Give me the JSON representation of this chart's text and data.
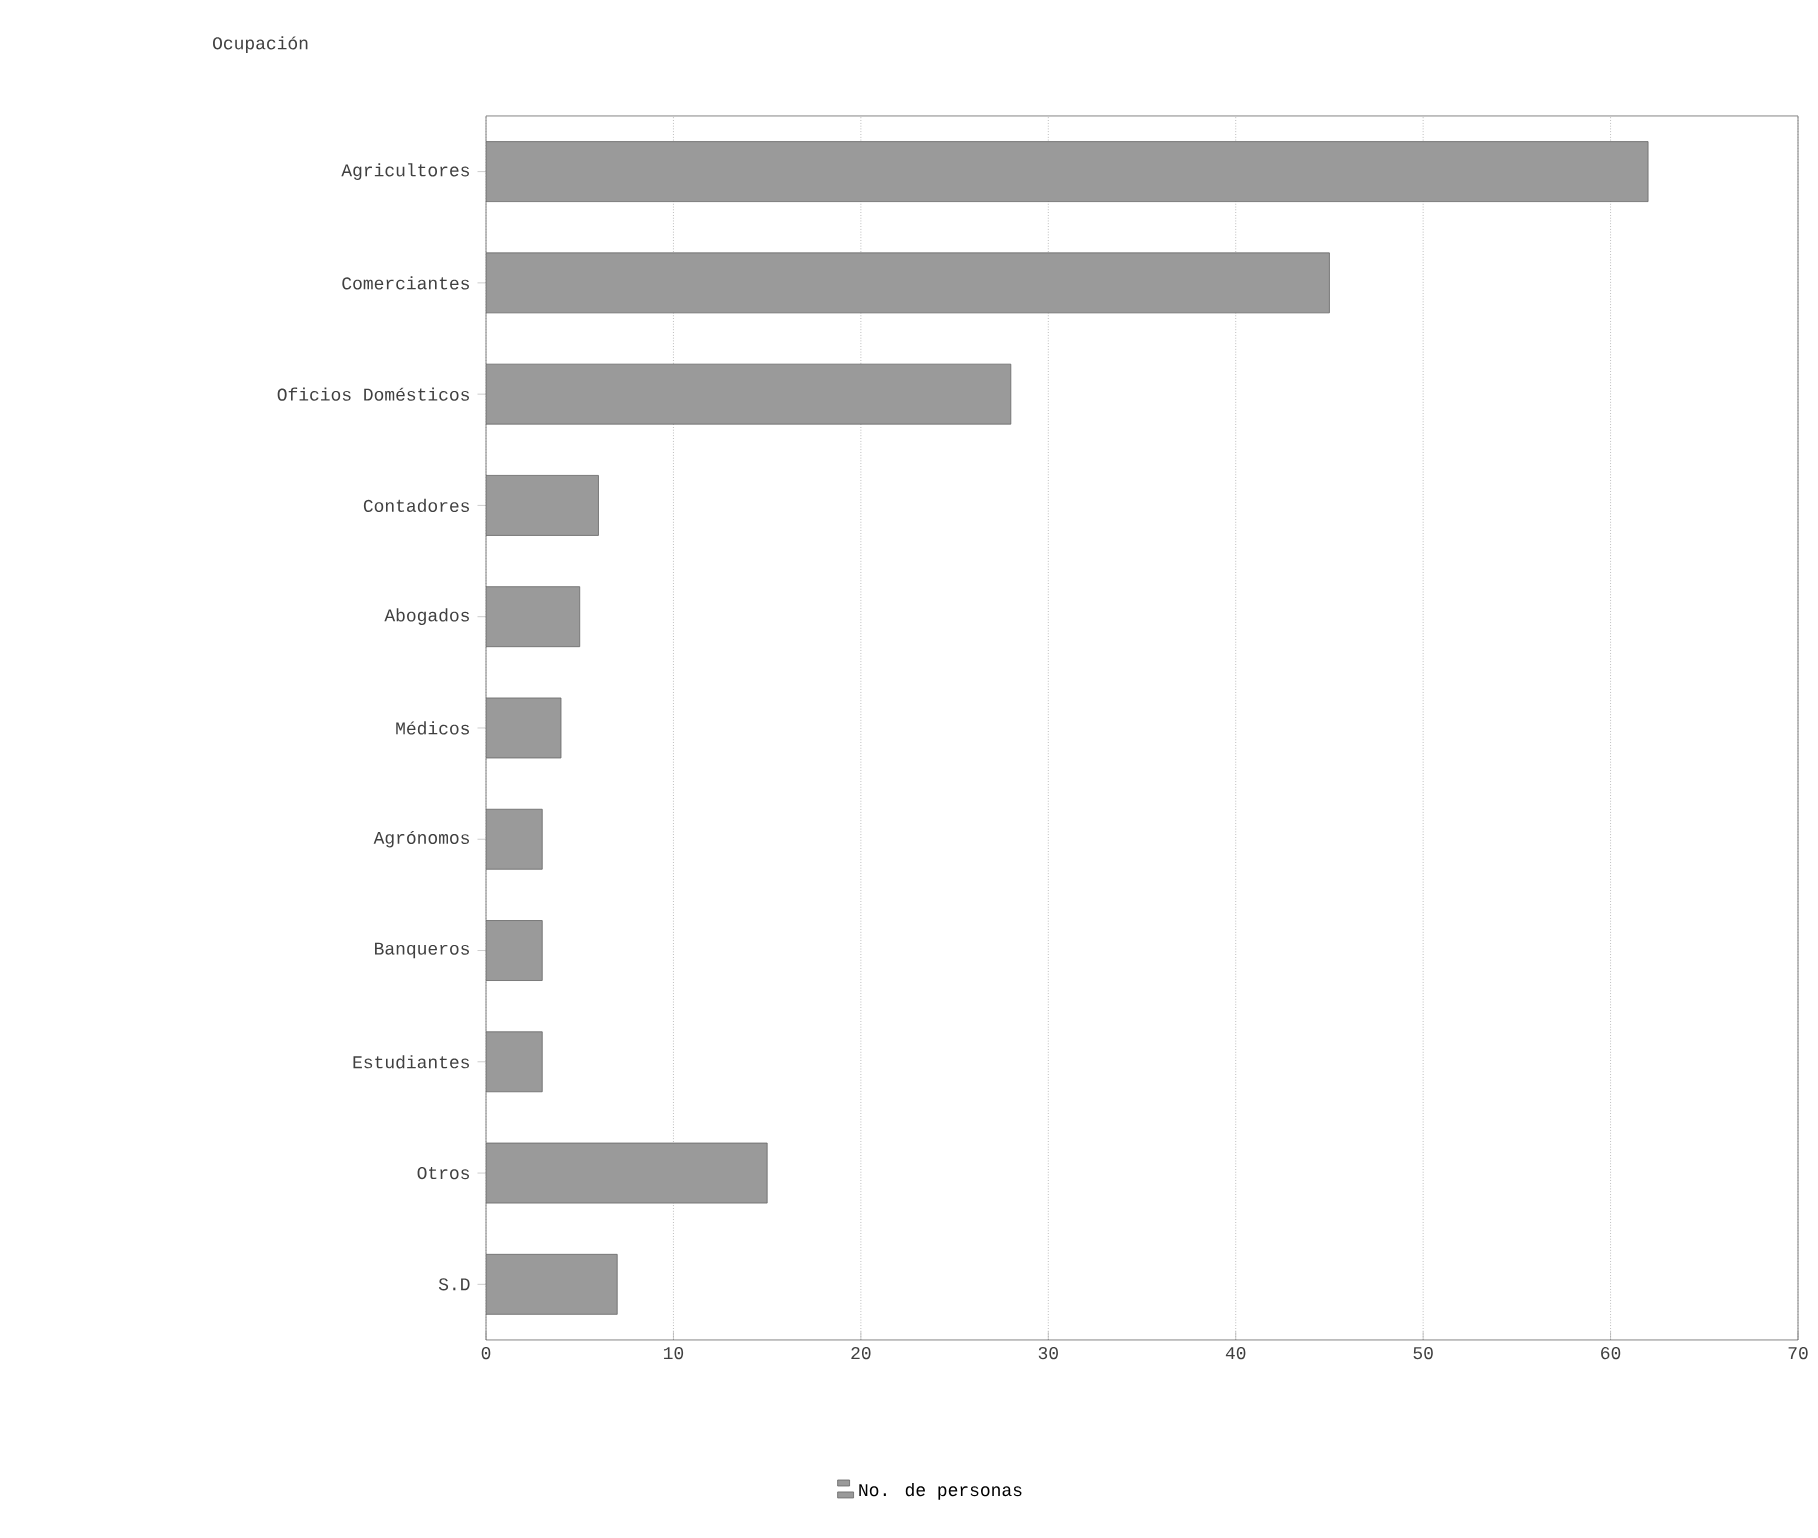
{
  "chart_data": {
    "type": "bar",
    "orientation": "horizontal",
    "ylabel": "Ocupación",
    "categories": [
      "Agricultores",
      "Comerciantes",
      "Oficios Domésticos",
      "Contadores",
      "Abogados",
      "Médicos",
      "Agrónomos",
      "Banqueros",
      "Estudiantes",
      "Otros",
      "S.D"
    ],
    "series": [
      {
        "name": "No. de personas",
        "color": "#9a9a9a",
        "values": [
          62,
          45,
          28,
          6,
          5,
          4,
          3,
          3,
          3,
          15,
          7
        ]
      }
    ],
    "xlim": [
      0,
      70
    ],
    "xticks": [
      0,
      10,
      20,
      30,
      40,
      50,
      60,
      70
    ],
    "grid": "x",
    "legend": "bottom"
  }
}
